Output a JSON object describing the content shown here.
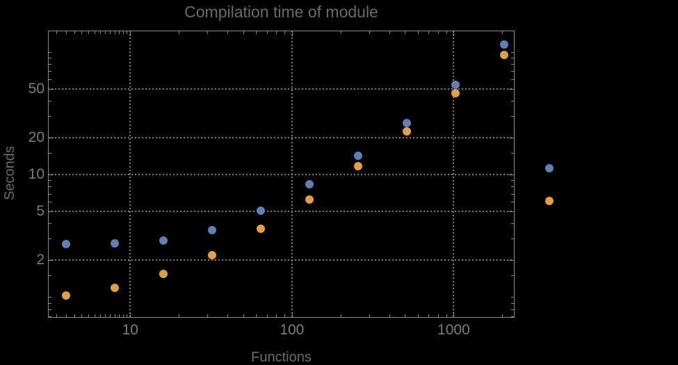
{
  "title": "Compilation time of module",
  "chart_data": {
    "type": "scatter",
    "title": "Compilation time of module",
    "xlabel": "Functions",
    "ylabel": "Seconds",
    "xscale": "log",
    "yscale": "log",
    "xlim": [
      3.1,
      2380
    ],
    "ylim": [
      0.68,
      150
    ],
    "grid": {
      "style": "dotted",
      "on_x_values": [
        10,
        100,
        1000
      ],
      "on_y_values": [
        2,
        5,
        10,
        20,
        50
      ]
    },
    "x_ticks": {
      "major": [
        10,
        100,
        1000
      ],
      "major_labels": [
        "10",
        "100",
        "1000"
      ],
      "minor": [
        3.5,
        4,
        4.5,
        5,
        5.5,
        6,
        6.5,
        7,
        7.5,
        8,
        8.5,
        9,
        9.5,
        20,
        30,
        40,
        50,
        60,
        70,
        80,
        90,
        200,
        300,
        400,
        500,
        600,
        700,
        800,
        900,
        2000
      ]
    },
    "y_ticks": {
      "major": [
        2,
        5,
        10,
        20,
        50
      ],
      "major_labels": [
        "2",
        "5",
        "10",
        "20",
        "50"
      ],
      "minor": [
        0.7,
        0.8,
        0.9,
        1,
        1.5,
        3,
        4,
        6,
        7,
        8,
        9,
        15,
        30,
        40,
        60,
        70,
        80,
        90,
        100
      ]
    },
    "series": [
      {
        "name": "series-1",
        "color": "#5E81B5",
        "marker": "circle",
        "x": [
          4,
          8,
          16,
          32,
          64,
          128,
          256,
          512,
          1024,
          2048
        ],
        "y": [
          2.7,
          2.75,
          2.9,
          3.55,
          5.1,
          8.4,
          14.3,
          26.5,
          54,
          115
        ]
      },
      {
        "name": "series-2",
        "color": "#E2A13C",
        "marker": "circle",
        "x": [
          4,
          8,
          16,
          32,
          64,
          128,
          256,
          512,
          1024,
          2048
        ],
        "y": [
          1.03,
          1.2,
          1.55,
          2.2,
          3.6,
          6.3,
          11.8,
          22.5,
          46,
          95
        ]
      }
    ],
    "legend": {
      "position": "outside-right",
      "entries": [
        {
          "marker_color": "#5E81B5",
          "label": ""
        },
        {
          "marker_color": "#E2A13C",
          "label": ""
        }
      ]
    }
  }
}
